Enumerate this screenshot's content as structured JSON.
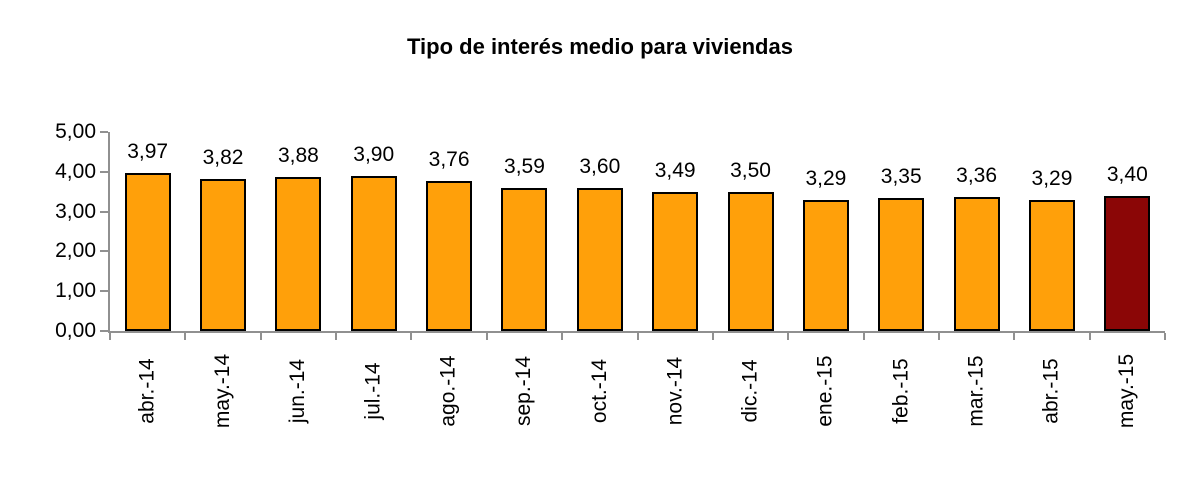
{
  "chart_data": {
    "type": "bar",
    "title": "Tipo de interés medio para viviendas",
    "categories": [
      "abr.-14",
      "may.-14",
      "jun.-14",
      "jul.-14",
      "ago.-14",
      "sep.-14",
      "oct.-14",
      "nov.-14",
      "dic.-14",
      "ene.-15",
      "feb.-15",
      "mar.-15",
      "abr.-15",
      "may.-15"
    ],
    "values": [
      3.97,
      3.82,
      3.88,
      3.9,
      3.76,
      3.59,
      3.6,
      3.49,
      3.5,
      3.29,
      3.35,
      3.36,
      3.29,
      3.4
    ],
    "value_labels": [
      "3,97",
      "3,82",
      "3,88",
      "3,90",
      "3,76",
      "3,59",
      "3,60",
      "3,49",
      "3,50",
      "3,29",
      "3,35",
      "3,36",
      "3,29",
      "3,40"
    ],
    "xlabel": "",
    "ylabel": "",
    "ylim": [
      0,
      5
    ],
    "y_tick_labels": [
      "0,00",
      "1,00",
      "2,00",
      "3,00",
      "4,00",
      "5,00"
    ],
    "y_tick_values": [
      0,
      1,
      2,
      3,
      4,
      5
    ],
    "grid": false,
    "legend": null,
    "highlight_index": 13,
    "colors": {
      "bar": "#FFA00A",
      "highlight_bar": "#8B0606",
      "bar_border": "#000000",
      "axis": "#909090",
      "text": "#000000",
      "background": "#FFFFFF"
    }
  }
}
